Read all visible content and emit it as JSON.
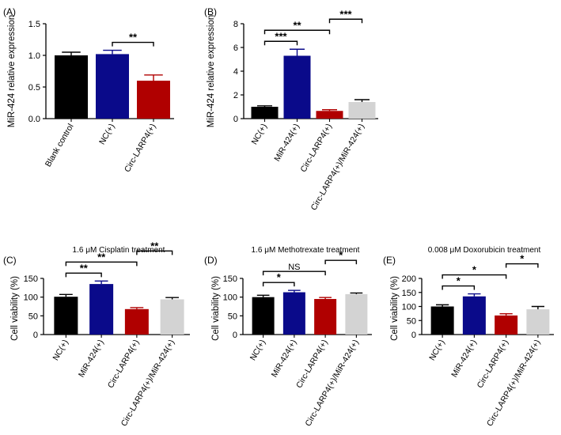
{
  "colors": {
    "black": "#000000",
    "blue": "#0a0a8a",
    "red": "#b00000",
    "gray": "#d3d3d3"
  },
  "chart_data": [
    {
      "panel": "(A)",
      "type": "bar",
      "title": "",
      "ylabel": "MiR-424 relative expression",
      "ylim": [
        0,
        1.5
      ],
      "yticks": [
        "0.0",
        "0.5",
        "1.0",
        "1.5"
      ],
      "ytick_values": [
        0,
        0.5,
        1.0,
        1.5
      ],
      "categories": [
        "Blank control",
        "NC(+)",
        "Circ-LARP4(+)"
      ],
      "values": [
        1.0,
        1.02,
        0.6
      ],
      "errors": [
        0.05,
        0.06,
        0.09
      ],
      "bar_colors": [
        "black",
        "blue",
        "red"
      ],
      "significance": [
        {
          "from": 1,
          "to": 2,
          "label": "**"
        }
      ]
    },
    {
      "panel": "(B)",
      "type": "bar",
      "title": "",
      "ylabel": "MiR-424 relative expression",
      "ylim": [
        0,
        8
      ],
      "yticks": [
        "0",
        "2",
        "4",
        "6",
        "8"
      ],
      "ytick_values": [
        0,
        2,
        4,
        6,
        8
      ],
      "categories": [
        "NC(+)",
        "MiR-424(+)",
        "Circ-LARP4(+)",
        "Circ-LARP4(+)/MiR-424(+)"
      ],
      "values": [
        1.0,
        5.3,
        0.65,
        1.4
      ],
      "errors": [
        0.08,
        0.55,
        0.1,
        0.2
      ],
      "bar_colors": [
        "black",
        "blue",
        "red",
        "gray"
      ],
      "significance": [
        {
          "from": 0,
          "to": 1,
          "label": "***"
        },
        {
          "from": 0,
          "to": 2,
          "label": "**"
        },
        {
          "from": 2,
          "to": 3,
          "label": "***"
        }
      ]
    },
    {
      "panel": "(C)",
      "type": "bar",
      "title": "1.6 μM Cisplatin treatment",
      "ylabel": "Cell viability (%)",
      "ylim": [
        0,
        150
      ],
      "yticks": [
        "0",
        "50",
        "100",
        "150"
      ],
      "ytick_values": [
        0,
        50,
        100,
        150
      ],
      "categories": [
        "NC(+)",
        "MiR-424(+)",
        "Circ-LARP4(+)",
        "Circ-LARP4(+)/MiR-424(+)"
      ],
      "values": [
        101,
        135,
        68,
        94
      ],
      "errors": [
        6,
        8,
        4,
        5
      ],
      "bar_colors": [
        "black",
        "blue",
        "red",
        "gray"
      ],
      "significance": [
        {
          "from": 0,
          "to": 1,
          "label": "**"
        },
        {
          "from": 0,
          "to": 2,
          "label": "**"
        },
        {
          "from": 2,
          "to": 3,
          "label": "**"
        }
      ]
    },
    {
      "panel": "(D)",
      "type": "bar",
      "title": "1.6 μM Methotrexate treatment",
      "ylabel": "Cell viability (%)",
      "ylim": [
        0,
        150
      ],
      "yticks": [
        "0",
        "50",
        "100",
        "150"
      ],
      "ytick_values": [
        0,
        50,
        100,
        150
      ],
      "categories": [
        "NC(+)",
        "MiR-424(+)",
        "Circ-LARP4(+)",
        "Circ-LARP4(+)/MiR-424(+)"
      ],
      "values": [
        100,
        113,
        95,
        108
      ],
      "errors": [
        5,
        5,
        4,
        3
      ],
      "bar_colors": [
        "black",
        "blue",
        "red",
        "gray"
      ],
      "significance": [
        {
          "from": 0,
          "to": 1,
          "label": "*"
        },
        {
          "from": 0,
          "to": 2,
          "label": "NS"
        },
        {
          "from": 2,
          "to": 3,
          "label": "*"
        }
      ]
    },
    {
      "panel": "(E)",
      "type": "bar",
      "title": "0.008 μM Doxorubicin treatment",
      "ylabel": "Cell viability (%)",
      "ylim": [
        0,
        200
      ],
      "yticks": [
        "0",
        "50",
        "100",
        "150",
        "200"
      ],
      "ytick_values": [
        0,
        50,
        100,
        150,
        200
      ],
      "categories": [
        "NC(+)",
        "MiR-424(+)",
        "Circ-LARP4(+)",
        "Circ-LARP4(+)/MiR-424(+)"
      ],
      "values": [
        100,
        136,
        68,
        90
      ],
      "errors": [
        6,
        9,
        6,
        10
      ],
      "bar_colors": [
        "black",
        "blue",
        "red",
        "gray"
      ],
      "significance": [
        {
          "from": 0,
          "to": 1,
          "label": "*"
        },
        {
          "from": 0,
          "to": 2,
          "label": "*"
        },
        {
          "from": 2,
          "to": 3,
          "label": "*"
        }
      ]
    }
  ]
}
